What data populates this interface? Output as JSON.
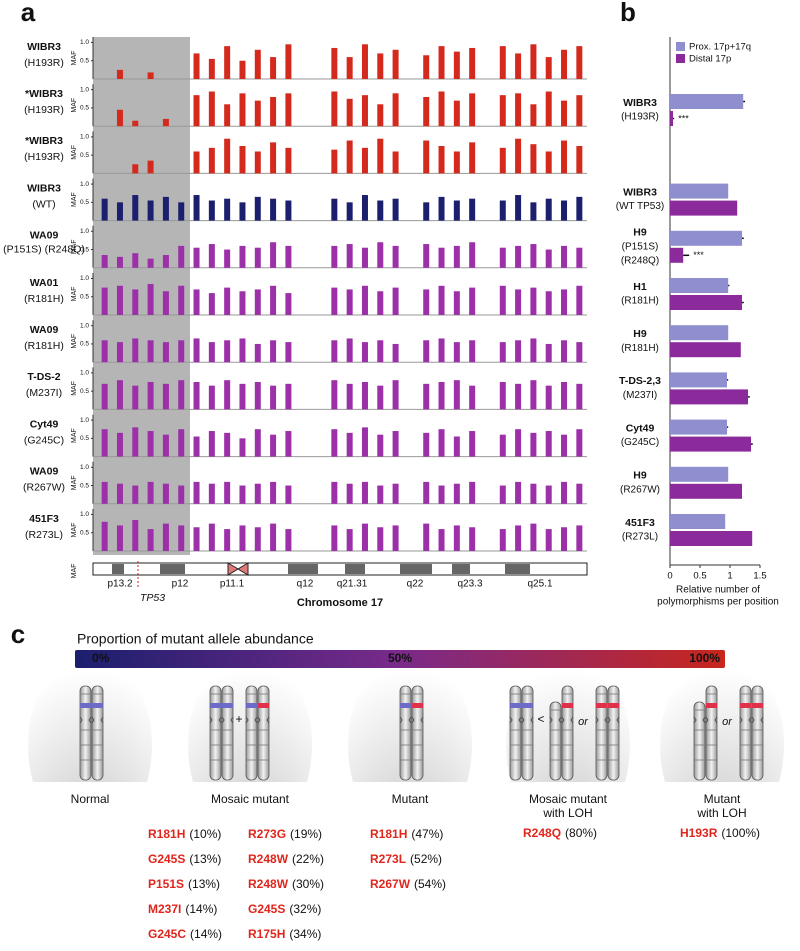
{
  "panel_labels": [
    "a",
    "b",
    "c"
  ],
  "chart_data": [
    {
      "type": "bar",
      "ylabel": "MAF",
      "xlabel": "Chromosome 17",
      "ylim": [
        0,
        1.15
      ],
      "yticks": [
        {
          "value": 1,
          "label": "1.0"
        },
        0.5
      ],
      "band_labels": [
        "p13.2",
        "p12",
        "p11.1",
        "q12",
        "q21.31",
        "q22",
        "q23.3",
        "q25.1"
      ],
      "gene_label": "TP53",
      "series": [
        {
          "name": "WIBR3",
          "variant": "(H193R)",
          "color": "#d42a1e",
          "values": [
            null,
            0.25,
            null,
            0.18,
            null,
            null,
            0.7,
            0.55,
            0.9,
            0.5,
            0.8,
            0.6,
            0.95,
            null,
            null,
            0.85,
            0.6,
            0.95,
            0.7,
            0.8,
            null,
            0.65,
            0.9,
            0.75,
            0.85,
            null,
            0.9,
            0.7,
            0.95,
            0.6,
            0.8,
            0.9
          ]
        },
        {
          "name": "*WIBR3",
          "variant": "(H193R)",
          "color": "#d42a1e",
          "values": [
            null,
            0.45,
            0.15,
            null,
            0.2,
            null,
            0.85,
            0.95,
            0.6,
            0.9,
            0.7,
            0.8,
            0.9,
            null,
            null,
            0.95,
            0.75,
            0.85,
            0.6,
            0.9,
            null,
            0.8,
            0.95,
            0.7,
            0.9,
            null,
            0.85,
            0.9,
            0.6,
            0.95,
            0.7,
            0.85
          ]
        },
        {
          "name": "*WIBR3",
          "variant": "(H193R)",
          "color": "#d42a1e",
          "values": [
            null,
            null,
            0.25,
            0.35,
            null,
            null,
            0.6,
            0.7,
            0.95,
            0.75,
            0.6,
            0.85,
            0.7,
            null,
            null,
            0.65,
            0.9,
            0.7,
            0.95,
            0.6,
            null,
            0.9,
            0.75,
            0.6,
            0.85,
            null,
            0.7,
            0.95,
            0.8,
            0.6,
            0.9,
            0.75
          ]
        },
        {
          "name": "WIBR3",
          "variant": "(WT)",
          "color": "#1b1f6e",
          "values": [
            0.6,
            0.5,
            0.7,
            0.55,
            0.65,
            0.5,
            0.7,
            0.55,
            0.6,
            0.5,
            0.65,
            0.6,
            0.55,
            null,
            null,
            0.6,
            0.5,
            0.7,
            0.55,
            0.6,
            null,
            0.5,
            0.65,
            0.55,
            0.6,
            null,
            0.55,
            0.7,
            0.5,
            0.6,
            0.55,
            0.65
          ]
        },
        {
          "name": "WA09",
          "variant": "(P151S)\n(R248Q)",
          "color": "#9b30a8",
          "values": [
            0.35,
            0.3,
            0.4,
            0.25,
            0.35,
            0.6,
            0.55,
            0.65,
            0.5,
            0.6,
            0.55,
            0.7,
            0.6,
            null,
            null,
            0.6,
            0.65,
            0.55,
            0.7,
            0.6,
            null,
            0.65,
            0.55,
            0.6,
            0.7,
            null,
            0.55,
            0.6,
            0.65,
            0.5,
            0.6,
            0.55
          ]
        },
        {
          "name": "WA01",
          "variant": "(R181H)",
          "color": "#9b30a8",
          "values": [
            0.75,
            0.8,
            0.7,
            0.85,
            0.65,
            0.8,
            0.7,
            0.6,
            0.75,
            0.65,
            0.7,
            0.8,
            0.6,
            null,
            null,
            0.75,
            0.7,
            0.8,
            0.65,
            0.75,
            null,
            0.7,
            0.8,
            0.65,
            0.75,
            null,
            0.8,
            0.7,
            0.75,
            0.65,
            0.7,
            0.8
          ]
        },
        {
          "name": "WA09",
          "variant": "(R181H)",
          "color": "#9b30a8",
          "values": [
            0.6,
            0.55,
            0.65,
            0.6,
            0.55,
            0.6,
            0.65,
            0.55,
            0.6,
            0.65,
            0.5,
            0.6,
            0.55,
            null,
            null,
            0.6,
            0.65,
            0.55,
            0.6,
            0.5,
            null,
            0.6,
            0.65,
            0.55,
            0.6,
            null,
            0.55,
            0.6,
            0.65,
            0.5,
            0.6,
            0.55
          ]
        },
        {
          "name": "T-DS-2",
          "variant": "(M237I)",
          "color": "#9b30a8",
          "values": [
            0.7,
            0.8,
            0.65,
            0.75,
            0.7,
            0.8,
            0.75,
            0.65,
            0.8,
            0.7,
            0.75,
            0.65,
            0.7,
            null,
            null,
            0.8,
            0.7,
            0.75,
            0.65,
            0.8,
            null,
            0.7,
            0.75,
            0.8,
            0.65,
            null,
            0.75,
            0.7,
            0.8,
            0.65,
            0.75,
            0.7
          ]
        },
        {
          "name": "Cyt49",
          "variant": "(G245C)",
          "color": "#9b30a8",
          "values": [
            0.75,
            0.65,
            0.8,
            0.7,
            0.6,
            0.75,
            0.55,
            0.7,
            0.65,
            0.5,
            0.75,
            0.6,
            0.7,
            null,
            null,
            0.75,
            0.65,
            0.8,
            0.6,
            0.7,
            null,
            0.65,
            0.75,
            0.55,
            0.7,
            null,
            0.6,
            0.75,
            0.65,
            0.7,
            0.6,
            0.75
          ]
        },
        {
          "name": "WA09",
          "variant": "(R267W)",
          "color": "#9b30a8",
          "values": [
            0.6,
            0.55,
            0.5,
            0.6,
            0.55,
            0.5,
            0.6,
            0.55,
            0.6,
            0.5,
            0.55,
            0.6,
            0.5,
            null,
            null,
            0.6,
            0.55,
            0.6,
            0.5,
            0.55,
            null,
            0.6,
            0.5,
            0.55,
            0.6,
            null,
            0.5,
            0.6,
            0.55,
            0.5,
            0.6,
            0.55
          ]
        },
        {
          "name": "451F3",
          "variant": "(R273L)",
          "color": "#9b30a8",
          "values": [
            0.8,
            0.7,
            0.85,
            0.6,
            0.75,
            0.7,
            0.65,
            0.75,
            0.6,
            0.7,
            0.65,
            0.75,
            0.6,
            null,
            null,
            0.7,
            0.6,
            0.75,
            0.65,
            0.7,
            null,
            0.75,
            0.6,
            0.7,
            0.65,
            null,
            0.6,
            0.7,
            0.75,
            0.6,
            0.65,
            0.7
          ]
        }
      ]
    },
    {
      "type": "hbar",
      "groups": [
        {
          "name": "WIBR3",
          "variant": [
            "(H193R)"
          ]
        },
        {
          "name": "WIBR3",
          "variant": [
            "(WT TP53)"
          ]
        },
        {
          "name": "H9",
          "variant": [
            "(P151S)",
            "(R248Q)"
          ]
        },
        {
          "name": "H1",
          "variant": [
            "(R181H)"
          ]
        },
        {
          "name": "H9",
          "variant": [
            "(R181H)"
          ]
        },
        {
          "name": "T-DS-2,3",
          "variant": [
            "(M237I)"
          ]
        },
        {
          "name": "Cyt49",
          "variant": [
            "(G245C)"
          ]
        },
        {
          "name": "H9",
          "variant": [
            "(R267W)"
          ]
        },
        {
          "name": "451F3",
          "variant": [
            "(R273L)"
          ]
        }
      ],
      "series": [
        {
          "name": "Prox. 17p+17q",
          "color": "#8f8fcf",
          "values": [
            1.22,
            0.97,
            1.2,
            0.97,
            0.97,
            0.95,
            0.95,
            0.97,
            0.92
          ],
          "errors": [
            0.03,
            0,
            0.03,
            0.02,
            0,
            0.02,
            0.02,
            0,
            0
          ]
        },
        {
          "name": "Distal 17p",
          "color": "#8b2a9b",
          "values": [
            0.05,
            1.12,
            0.22,
            1.2,
            1.18,
            1.3,
            1.35,
            1.2,
            1.37
          ],
          "errors": [
            0.02,
            0,
            0.1,
            0.03,
            0,
            0.03,
            0.03,
            0,
            0
          ]
        }
      ],
      "significance": [
        "***",
        null,
        "***",
        null,
        null,
        null,
        null,
        null,
        null
      ],
      "xlim": [
        0,
        1.5
      ],
      "xticks": [
        0,
        0.5,
        1,
        1.5
      ],
      "xlabel": [
        "Relative number of",
        "polymorphisms per position"
      ],
      "legend": "top-left"
    }
  ],
  "panel_c": {
    "title": "Proportion of mutant allele abundance",
    "scale_labels": [
      "0%",
      "50%",
      "100%"
    ],
    "symbols": {
      "plus": "+",
      "less": "<",
      "or1": "or",
      "or2": "or"
    },
    "categories": [
      {
        "label": [
          "Normal"
        ],
        "mutations": []
      },
      {
        "label": [
          "Mosaic mutant"
        ],
        "mutations": [
          {
            "mutation": "R181H",
            "pct": "(10%)"
          },
          {
            "mutation": "G245S",
            "pct": "(13%)"
          },
          {
            "mutation": "P151S",
            "pct": "(13%)"
          },
          {
            "mutation": "M237I",
            "pct": "(14%)"
          },
          {
            "mutation": "G245C",
            "pct": "(14%)"
          },
          {
            "mutation": "R273G",
            "pct": "(19%)"
          },
          {
            "mutation": "R248W",
            "pct": "(22%)"
          },
          {
            "mutation": "R248W",
            "pct": "(30%)"
          },
          {
            "mutation": "G245S",
            "pct": "(32%)"
          },
          {
            "mutation": "R175H",
            "pct": "(34%)"
          }
        ]
      },
      {
        "label": [
          "Mutant"
        ],
        "mutations": [
          {
            "mutation": "R181H",
            "pct": "(47%)"
          },
          {
            "mutation": "R273L",
            "pct": "(52%)"
          },
          {
            "mutation": "R267W",
            "pct": "(54%)"
          }
        ]
      },
      {
        "label": [
          "Mosaic mutant",
          "with LOH"
        ],
        "mutations": [
          {
            "mutation": "R248Q",
            "pct": "(80%)"
          }
        ]
      },
      {
        "label": [
          "Mutant",
          "with LOH"
        ],
        "mutations": [
          {
            "mutation": "H193R",
            "pct": "(100%)"
          }
        ]
      }
    ]
  }
}
